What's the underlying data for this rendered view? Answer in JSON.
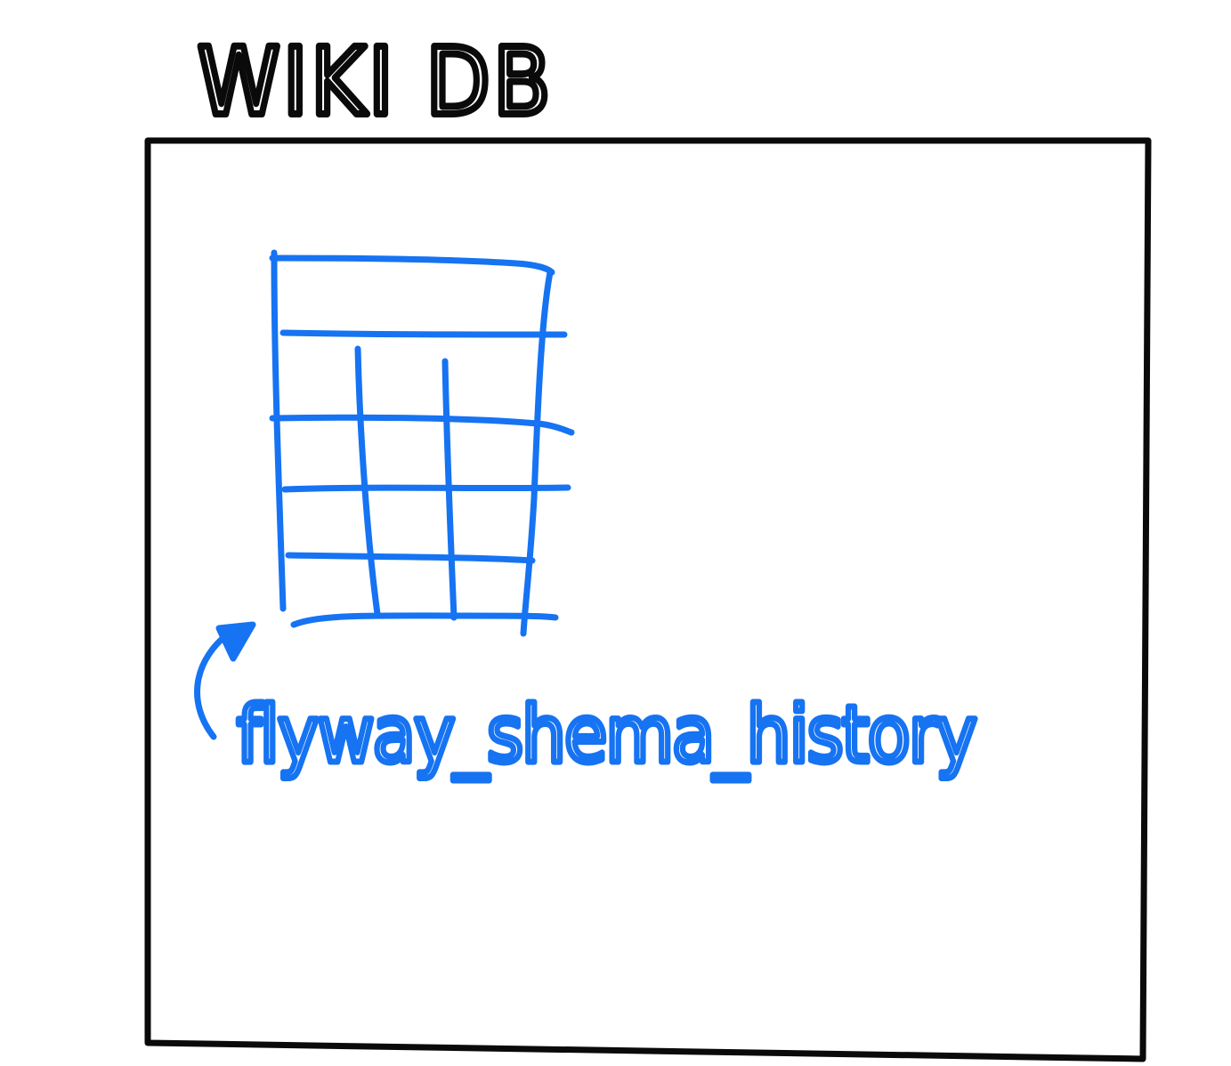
{
  "diagram": {
    "title": "WIKI DB",
    "table_label": "flyway_shema_history",
    "colors": {
      "ink": "#0a0a0a",
      "accent": "#1673f2"
    },
    "icons": {
      "table": "table-grid-icon",
      "arrow": "curved-arrow-icon"
    }
  }
}
